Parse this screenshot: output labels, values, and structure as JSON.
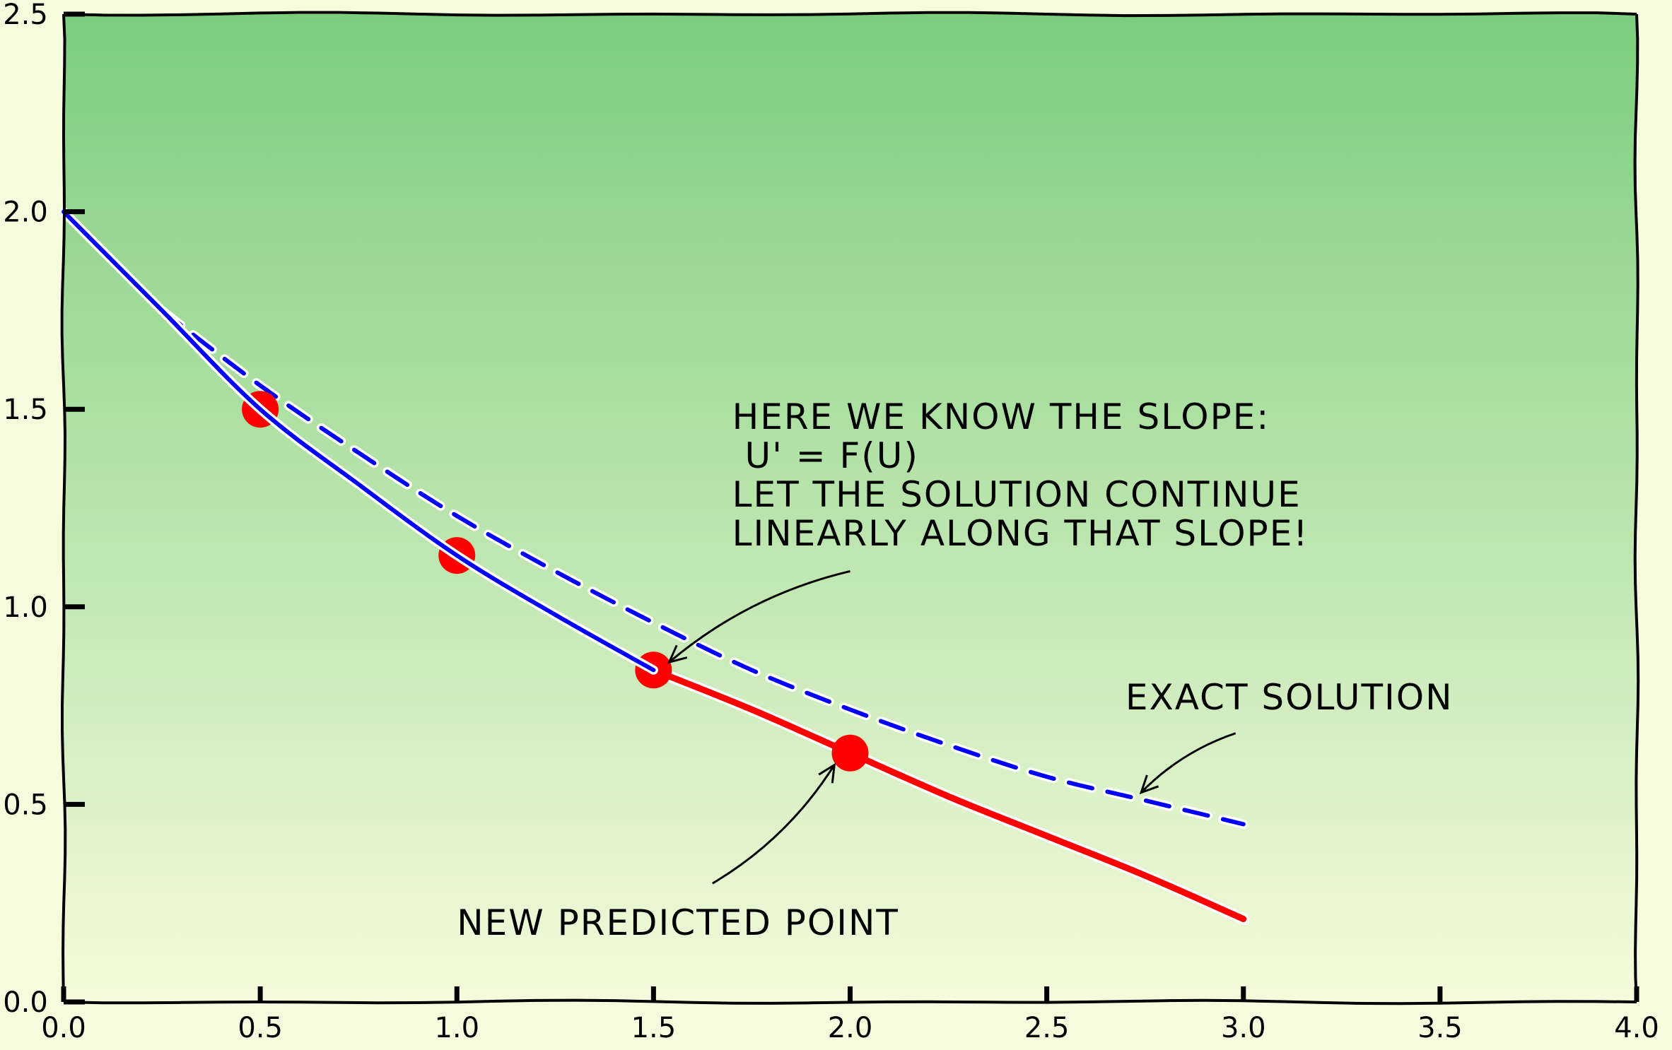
{
  "chart_data": {
    "type": "line",
    "title": "",
    "xlabel": "",
    "ylabel": "",
    "xlim": [
      0.0,
      4.0
    ],
    "ylim": [
      0.0,
      2.5
    ],
    "grid": false,
    "legend": "none",
    "x_ticks": [
      "0.0",
      "0.5",
      "1.0",
      "1.5",
      "2.0",
      "2.5",
      "3.0",
      "3.5",
      "4.0"
    ],
    "y_ticks": [
      "0.0",
      "0.5",
      "1.0",
      "1.5",
      "2.0",
      "2.5"
    ],
    "series": [
      {
        "style": "dashed",
        "color": "#0000ff",
        "x": [
          0.25,
          0.5,
          0.75,
          1.0,
          1.25,
          1.5,
          1.75,
          2.0,
          2.25,
          2.5,
          2.75,
          3.0
        ],
        "y": [
          1.75,
          1.56,
          1.39,
          1.23,
          1.09,
          0.96,
          0.84,
          0.74,
          0.65,
          0.57,
          0.51,
          0.45
        ]
      },
      {
        "style": "solid",
        "color": "#0000ff",
        "x": [
          0.0,
          0.25,
          0.5,
          0.75,
          1.0,
          1.25,
          1.5
        ],
        "y": [
          2.0,
          1.75,
          1.5,
          1.31,
          1.13,
          0.98,
          0.84
        ]
      },
      {
        "style": "solid",
        "color": "#ff0000",
        "x": [
          1.5,
          1.75,
          2.0,
          2.25,
          2.5,
          2.75,
          3.0
        ],
        "y": [
          0.84,
          0.74,
          0.63,
          0.52,
          0.42,
          0.32,
          0.21
        ]
      }
    ],
    "points": [
      {
        "x": 0.5,
        "y": 1.5
      },
      {
        "x": 1.0,
        "y": 1.13
      },
      {
        "x": 1.5,
        "y": 0.84
      },
      {
        "x": 2.0,
        "y": 0.63
      }
    ],
    "annotations": [
      {
        "lines": [
          "HERE WE KNOW THE SLOPE:",
          "    U' = F(U)",
          "LET THE SOLUTION CONTINUE",
          "LINEARLY ALONG THAT SLOPE!"
        ],
        "text_x": 1.7,
        "text_y": 1.45,
        "arrow_from": [
          2.0,
          1.09
        ],
        "arrow_to": [
          1.54,
          0.86
        ]
      },
      {
        "lines": [
          "EXACT SOLUTION"
        ],
        "text_x": 2.7,
        "text_y": 0.74,
        "arrow_from": [
          2.98,
          0.68
        ],
        "arrow_to": [
          2.74,
          0.53
        ]
      },
      {
        "lines": [
          "NEW PREDICTED POINT"
        ],
        "text_x": 1.0,
        "text_y": 0.17,
        "arrow_from": [
          1.65,
          0.3
        ],
        "arrow_to": [
          1.96,
          0.6
        ]
      }
    ],
    "background_gradient": {
      "top": "#7ccd7c",
      "bottom": "#f5fbdc"
    },
    "point_color": "#ff0000"
  }
}
